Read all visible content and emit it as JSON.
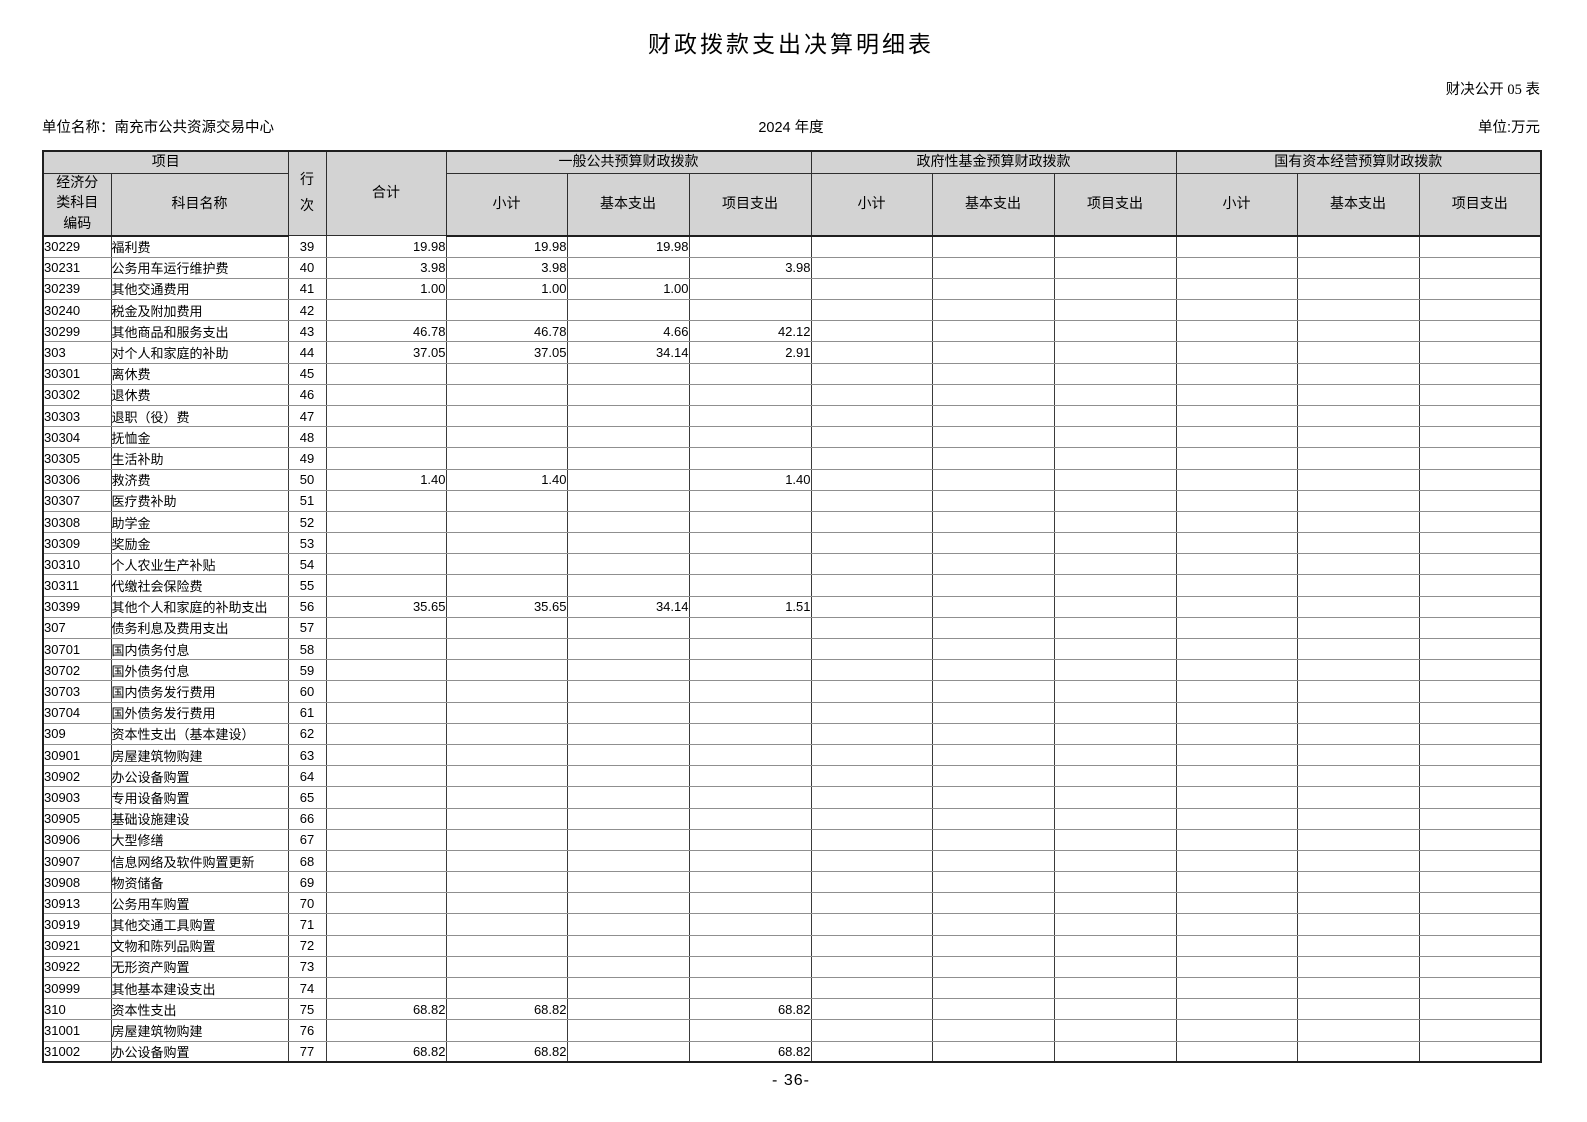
{
  "page": {
    "title": "财政拨款支出决算明细表",
    "doc_code": "财决公开 05 表",
    "unit_name_label": "单位名称：",
    "unit_name": "南充市公共资源交易中心",
    "fiscal_year": "2024 年度",
    "money_unit": "单位:万元",
    "page_number": "- 36-"
  },
  "table": {
    "headers": {
      "project": "项目",
      "code": "经济分类科目编码",
      "subject_name": "科目名称",
      "line_no": "行次",
      "total": "合计",
      "groups": [
        {
          "label": "一般公共预算财政拨款",
          "cols": [
            "小计",
            "基本支出",
            "项目支出"
          ]
        },
        {
          "label": "政府性基金预算财政拨款",
          "cols": [
            "小计",
            "基本支出",
            "项目支出"
          ]
        },
        {
          "label": "国有资本经营预算财政拨款",
          "cols": [
            "小计",
            "基本支出",
            "项目支出"
          ]
        }
      ]
    },
    "rows": [
      [
        "30229",
        "福利费",
        "39",
        "19.98",
        "19.98",
        "19.98",
        "",
        "",
        "",
        "",
        "",
        "",
        ""
      ],
      [
        "30231",
        "公务用车运行维护费",
        "40",
        "3.98",
        "3.98",
        "",
        "3.98",
        "",
        "",
        "",
        "",
        "",
        ""
      ],
      [
        "30239",
        "其他交通费用",
        "41",
        "1.00",
        "1.00",
        "1.00",
        "",
        "",
        "",
        "",
        "",
        "",
        ""
      ],
      [
        "30240",
        "税金及附加费用",
        "42",
        "",
        "",
        "",
        "",
        "",
        "",
        "",
        "",
        "",
        ""
      ],
      [
        "30299",
        "其他商品和服务支出",
        "43",
        "46.78",
        "46.78",
        "4.66",
        "42.12",
        "",
        "",
        "",
        "",
        "",
        ""
      ],
      [
        "303",
        "对个人和家庭的补助",
        "44",
        "37.05",
        "37.05",
        "34.14",
        "2.91",
        "",
        "",
        "",
        "",
        "",
        ""
      ],
      [
        "30301",
        "离休费",
        "45",
        "",
        "",
        "",
        "",
        "",
        "",
        "",
        "",
        "",
        ""
      ],
      [
        "30302",
        "退休费",
        "46",
        "",
        "",
        "",
        "",
        "",
        "",
        "",
        "",
        "",
        ""
      ],
      [
        "30303",
        "退职（役）费",
        "47",
        "",
        "",
        "",
        "",
        "",
        "",
        "",
        "",
        "",
        ""
      ],
      [
        "30304",
        "抚恤金",
        "48",
        "",
        "",
        "",
        "",
        "",
        "",
        "",
        "",
        "",
        ""
      ],
      [
        "30305",
        "生活补助",
        "49",
        "",
        "",
        "",
        "",
        "",
        "",
        "",
        "",
        "",
        ""
      ],
      [
        "30306",
        "救济费",
        "50",
        "1.40",
        "1.40",
        "",
        "1.40",
        "",
        "",
        "",
        "",
        "",
        ""
      ],
      [
        "30307",
        "医疗费补助",
        "51",
        "",
        "",
        "",
        "",
        "",
        "",
        "",
        "",
        "",
        ""
      ],
      [
        "30308",
        "助学金",
        "52",
        "",
        "",
        "",
        "",
        "",
        "",
        "",
        "",
        "",
        ""
      ],
      [
        "30309",
        "奖励金",
        "53",
        "",
        "",
        "",
        "",
        "",
        "",
        "",
        "",
        "",
        ""
      ],
      [
        "30310",
        "个人农业生产补贴",
        "54",
        "",
        "",
        "",
        "",
        "",
        "",
        "",
        "",
        "",
        ""
      ],
      [
        "30311",
        "代缴社会保险费",
        "55",
        "",
        "",
        "",
        "",
        "",
        "",
        "",
        "",
        "",
        ""
      ],
      [
        "30399",
        "其他个人和家庭的补助支出",
        "56",
        "35.65",
        "35.65",
        "34.14",
        "1.51",
        "",
        "",
        "",
        "",
        "",
        ""
      ],
      [
        "307",
        "债务利息及费用支出",
        "57",
        "",
        "",
        "",
        "",
        "",
        "",
        "",
        "",
        "",
        ""
      ],
      [
        "30701",
        "国内债务付息",
        "58",
        "",
        "",
        "",
        "",
        "",
        "",
        "",
        "",
        "",
        ""
      ],
      [
        "30702",
        "国外债务付息",
        "59",
        "",
        "",
        "",
        "",
        "",
        "",
        "",
        "",
        "",
        ""
      ],
      [
        "30703",
        "国内债务发行费用",
        "60",
        "",
        "",
        "",
        "",
        "",
        "",
        "",
        "",
        "",
        ""
      ],
      [
        "30704",
        "国外债务发行费用",
        "61",
        "",
        "",
        "",
        "",
        "",
        "",
        "",
        "",
        "",
        ""
      ],
      [
        "309",
        "资本性支出（基本建设）",
        "62",
        "",
        "",
        "",
        "",
        "",
        "",
        "",
        "",
        "",
        ""
      ],
      [
        "30901",
        "房屋建筑物购建",
        "63",
        "",
        "",
        "",
        "",
        "",
        "",
        "",
        "",
        "",
        ""
      ],
      [
        "30902",
        "办公设备购置",
        "64",
        "",
        "",
        "",
        "",
        "",
        "",
        "",
        "",
        "",
        ""
      ],
      [
        "30903",
        "专用设备购置",
        "65",
        "",
        "",
        "",
        "",
        "",
        "",
        "",
        "",
        "",
        ""
      ],
      [
        "30905",
        "基础设施建设",
        "66",
        "",
        "",
        "",
        "",
        "",
        "",
        "",
        "",
        "",
        ""
      ],
      [
        "30906",
        "大型修缮",
        "67",
        "",
        "",
        "",
        "",
        "",
        "",
        "",
        "",
        "",
        ""
      ],
      [
        "30907",
        "信息网络及软件购置更新",
        "68",
        "",
        "",
        "",
        "",
        "",
        "",
        "",
        "",
        "",
        ""
      ],
      [
        "30908",
        "物资储备",
        "69",
        "",
        "",
        "",
        "",
        "",
        "",
        "",
        "",
        "",
        ""
      ],
      [
        "30913",
        "公务用车购置",
        "70",
        "",
        "",
        "",
        "",
        "",
        "",
        "",
        "",
        "",
        ""
      ],
      [
        "30919",
        "其他交通工具购置",
        "71",
        "",
        "",
        "",
        "",
        "",
        "",
        "",
        "",
        "",
        ""
      ],
      [
        "30921",
        "文物和陈列品购置",
        "72",
        "",
        "",
        "",
        "",
        "",
        "",
        "",
        "",
        "",
        ""
      ],
      [
        "30922",
        "无形资产购置",
        "73",
        "",
        "",
        "",
        "",
        "",
        "",
        "",
        "",
        "",
        ""
      ],
      [
        "30999",
        "其他基本建设支出",
        "74",
        "",
        "",
        "",
        "",
        "",
        "",
        "",
        "",
        "",
        ""
      ],
      [
        "310",
        "资本性支出",
        "75",
        "68.82",
        "68.82",
        "",
        "68.82",
        "",
        "",
        "",
        "",
        "",
        ""
      ],
      [
        "31001",
        "房屋建筑物购建",
        "76",
        "",
        "",
        "",
        "",
        "",
        "",
        "",
        "",
        "",
        ""
      ],
      [
        "31002",
        "办公设备购置",
        "77",
        "68.82",
        "68.82",
        "",
        "68.82",
        "",
        "",
        "",
        "",
        "",
        ""
      ]
    ]
  }
}
